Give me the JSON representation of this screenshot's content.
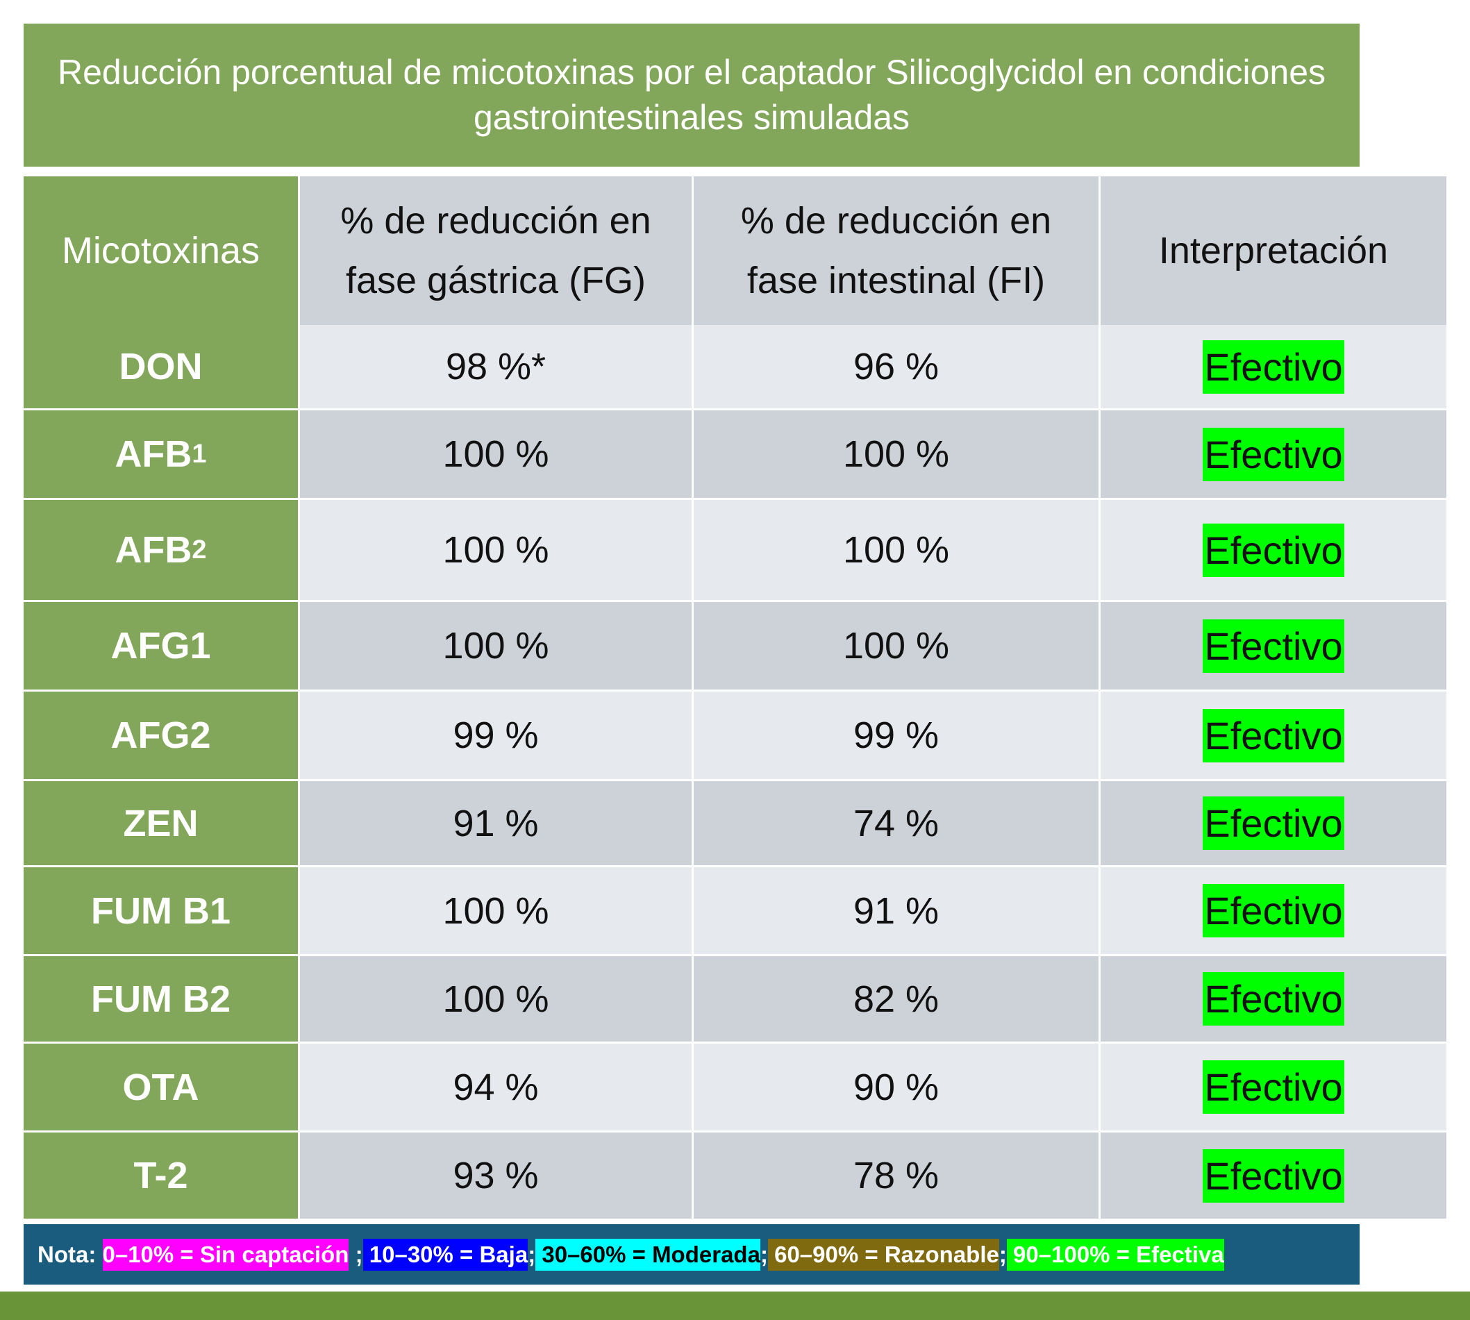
{
  "title": "Reducción porcentual de micotoxinas por el captador Silicoglycidol en condiciones gastrointestinales simuladas",
  "table": {
    "columns": [
      "Micotoxinas",
      "% de reducción en fase gástrica (FG)",
      "% de reducción en fase intestinal (FI)",
      "Interpretación"
    ],
    "interpretation_highlight": "#00ff00",
    "rows": [
      {
        "toxin": {
          "text": "DON"
        },
        "fg": "98 %*",
        "fi": "96 %",
        "interpretation": "Efectivo"
      },
      {
        "toxin": {
          "text": "AFB",
          "sub": "1"
        },
        "fg": "100 %",
        "fi": "100 %",
        "interpretation": "Efectivo"
      },
      {
        "toxin": {
          "text": "AFB",
          "sub": "2"
        },
        "fg": "100 %",
        "fi": "100 %",
        "interpretation": "Efectivo"
      },
      {
        "toxin": {
          "text": "AFG1"
        },
        "fg": "100 %",
        "fi": "100 %",
        "interpretation": "Efectivo"
      },
      {
        "toxin": {
          "text": "AFG2"
        },
        "fg": "99 %",
        "fi": "99 %",
        "interpretation": "Efectivo"
      },
      {
        "toxin": {
          "text": "ZEN"
        },
        "fg": "91 %",
        "fi": "74 %",
        "interpretation": "Efectivo"
      },
      {
        "toxin": {
          "text": "FUM B1"
        },
        "fg": "100 %",
        "fi": "91 %",
        "interpretation": "Efectivo"
      },
      {
        "toxin": {
          "text": "FUM B2"
        },
        "fg": "100 %",
        "fi": "82 %",
        "interpretation": "Efectivo"
      },
      {
        "toxin": {
          "text": "OTA"
        },
        "fg": "94 %",
        "fi": "90 %",
        "interpretation": "Efectivo"
      },
      {
        "toxin": {
          "text": "T-2"
        },
        "fg": "93 %",
        "fi": "78 %",
        "interpretation": "Efectivo"
      }
    ]
  },
  "note": [
    {
      "text": "Nota: "
    },
    {
      "text": "0–10% = Sin captación",
      "background": "#ff00ff",
      "color": "#ffffff"
    },
    {
      "text": " ;"
    },
    {
      "text": " 10–30% = Baja",
      "background": "#0000ff",
      "color": "#ffffff"
    },
    {
      "text": ";"
    },
    {
      "text": " 30–60% = Moderada",
      "background": "#00ffff",
      "color": "#000000"
    },
    {
      "text": ";"
    },
    {
      "text": " 60–90% = Razonable",
      "background": "#7f6a10",
      "color": "#ffffff"
    },
    {
      "text": ";"
    },
    {
      "text": " 90–100% = Efectiva",
      "background": "#00ff00",
      "color": "#ffffff"
    }
  ]
}
